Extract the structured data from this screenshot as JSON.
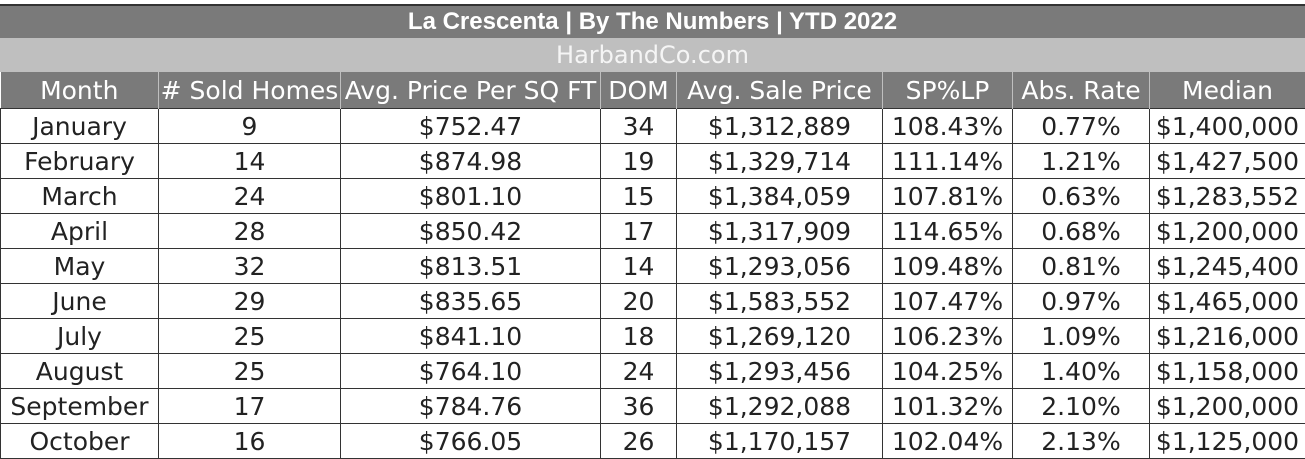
{
  "title": "La Crescenta  |  By The Numbers  |  YTD 2022",
  "subtitle": "HarbandCo.com",
  "columns": [
    "Month",
    "# Sold Homes",
    "Avg. Price Per SQ FT",
    "DOM",
    "Avg. Sale Price",
    "SP%LP",
    "Abs. Rate",
    "Median"
  ],
  "rows": [
    [
      "January",
      "9",
      "$752.47",
      "34",
      "$1,312,889",
      "108.43%",
      "0.77%",
      "$1,400,000"
    ],
    [
      "February",
      "14",
      "$874.98",
      "19",
      "$1,329,714",
      "111.14%",
      "1.21%",
      "$1,427,500"
    ],
    [
      "March",
      "24",
      "$801.10",
      "15",
      "$1,384,059",
      "107.81%",
      "0.63%",
      "$1,283,552"
    ],
    [
      "April",
      "28",
      "$850.42",
      "17",
      "$1,317,909",
      "114.65%",
      "0.68%",
      "$1,200,000"
    ],
    [
      "May",
      "32",
      "$813.51",
      "14",
      "$1,293,056",
      "109.48%",
      "0.81%",
      "$1,245,400"
    ],
    [
      "June",
      "29",
      "$835.65",
      "20",
      "$1,583,552",
      "107.47%",
      "0.97%",
      "$1,465,000"
    ],
    [
      "July",
      "25",
      "$841.10",
      "18",
      "$1,269,120",
      "106.23%",
      "1.09%",
      "$1,216,000"
    ],
    [
      "August",
      "25",
      "$764.10",
      "24",
      "$1,293,456",
      "104.25%",
      "1.40%",
      "$1,158,000"
    ],
    [
      "September",
      "17",
      "$784.76",
      "36",
      "$1,292,088",
      "101.32%",
      "2.10%",
      "$1,200,000"
    ],
    [
      "October",
      "16",
      "$766.05",
      "26",
      "$1,170,157",
      "102.04%",
      "2.13%",
      "$1,125,000"
    ]
  ]
}
